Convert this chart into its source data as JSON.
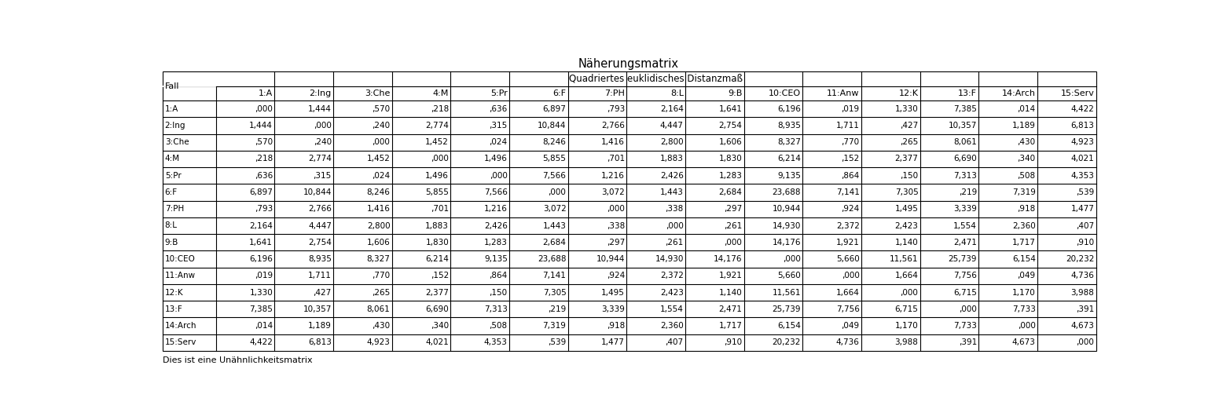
{
  "title": "Näherungsmatrix",
  "subtitle": "Quadriertes euklidisches Distanzmaß",
  "footnote": "Dies ist eine Unähnlichkeitsmatrix",
  "col_header": [
    "1:A",
    "2:Ing",
    "3:Che",
    "4:M",
    "5:Pr",
    "6:F",
    "7:PH",
    "8:L",
    "9:B",
    "10:CEO",
    "11:Anw",
    "12:K",
    "13:F",
    "14:Arch",
    "15:Serv"
  ],
  "row_header": [
    "1:A",
    "2:Ing",
    "3:Che",
    "4:M",
    "5:Pr",
    "6:F",
    "7:PH",
    "8:L",
    "9:B",
    "10:CEO",
    "11:Anw",
    "12:K",
    "13:F",
    "14:Arch",
    "15:Serv"
  ],
  "data": [
    [
      ",000",
      "1,444",
      ",570",
      ",218",
      ",636",
      "6,897",
      ",793",
      "2,164",
      "1,641",
      "6,196",
      ",019",
      "1,330",
      "7,385",
      ",014",
      "4,422"
    ],
    [
      "1,444",
      ",000",
      ",240",
      "2,774",
      ",315",
      "10,844",
      "2,766",
      "4,447",
      "2,754",
      "8,935",
      "1,711",
      ",427",
      "10,357",
      "1,189",
      "6,813"
    ],
    [
      ",570",
      ",240",
      ",000",
      "1,452",
      ",024",
      "8,246",
      "1,416",
      "2,800",
      "1,606",
      "8,327",
      ",770",
      ",265",
      "8,061",
      ",430",
      "4,923"
    ],
    [
      ",218",
      "2,774",
      "1,452",
      ",000",
      "1,496",
      "5,855",
      ",701",
      "1,883",
      "1,830",
      "6,214",
      ",152",
      "2,377",
      "6,690",
      ",340",
      "4,021"
    ],
    [
      ",636",
      ",315",
      ",024",
      "1,496",
      ",000",
      "7,566",
      "1,216",
      "2,426",
      "1,283",
      "9,135",
      ",864",
      ",150",
      "7,313",
      ",508",
      "4,353"
    ],
    [
      "6,897",
      "10,844",
      "8,246",
      "5,855",
      "7,566",
      ",000",
      "3,072",
      "1,443",
      "2,684",
      "23,688",
      "7,141",
      "7,305",
      ",219",
      "7,319",
      ",539"
    ],
    [
      ",793",
      "2,766",
      "1,416",
      ",701",
      "1,216",
      "3,072",
      ",000",
      ",338",
      ",297",
      "10,944",
      ",924",
      "1,495",
      "3,339",
      ",918",
      "1,477"
    ],
    [
      "2,164",
      "4,447",
      "2,800",
      "1,883",
      "2,426",
      "1,443",
      ",338",
      ",000",
      ",261",
      "14,930",
      "2,372",
      "2,423",
      "1,554",
      "2,360",
      ",407"
    ],
    [
      "1,641",
      "2,754",
      "1,606",
      "1,830",
      "1,283",
      "2,684",
      ",297",
      ",261",
      ",000",
      "14,176",
      "1,921",
      "1,140",
      "2,471",
      "1,717",
      ",910"
    ],
    [
      "6,196",
      "8,935",
      "8,327",
      "6,214",
      "9,135",
      "23,688",
      "10,944",
      "14,930",
      "14,176",
      ",000",
      "5,660",
      "11,561",
      "25,739",
      "6,154",
      "20,232"
    ],
    [
      ",019",
      "1,711",
      ",770",
      ",152",
      ",864",
      "7,141",
      ",924",
      "2,372",
      "1,921",
      "5,660",
      ",000",
      "1,664",
      "7,756",
      ",049",
      "4,736"
    ],
    [
      "1,330",
      ",427",
      ",265",
      "2,377",
      ",150",
      "7,305",
      "1,495",
      "2,423",
      "1,140",
      "11,561",
      "1,664",
      ",000",
      "6,715",
      "1,170",
      "3,988"
    ],
    [
      "7,385",
      "10,357",
      "8,061",
      "6,690",
      "7,313",
      ",219",
      "3,339",
      "1,554",
      "2,471",
      "25,739",
      "7,756",
      "6,715",
      ",000",
      "7,733",
      ",391"
    ],
    [
      ",014",
      "1,189",
      ",430",
      ",340",
      ",508",
      "7,319",
      ",918",
      "2,360",
      "1,717",
      "6,154",
      ",049",
      "1,170",
      "7,733",
      ",000",
      "4,673"
    ],
    [
      "4,422",
      "6,813",
      "4,923",
      "4,021",
      "4,353",
      ",539",
      "1,477",
      ",407",
      ",910",
      "20,232",
      "4,736",
      "3,988",
      ",391",
      "4,673",
      ",000"
    ]
  ],
  "bg_color": "#ffffff",
  "border_color": "#000000",
  "text_color": "#000000",
  "title_fontsize": 10.5,
  "subtitle_fontsize": 8.5,
  "cell_fontsize": 7.5,
  "header_fontsize": 8.0,
  "footnote_fontsize": 8.0,
  "fig_width": 15.6,
  "fig_height": 5.35,
  "dpi": 100
}
